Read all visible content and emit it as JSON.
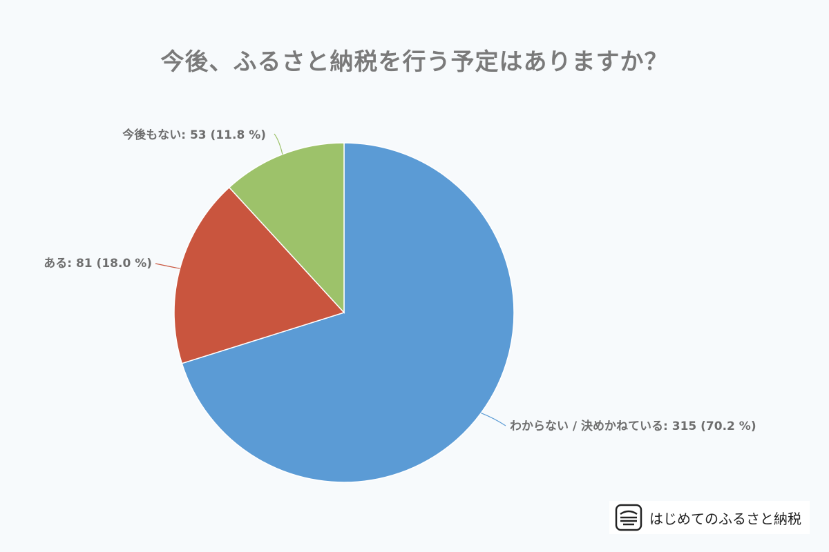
{
  "chart_data": {
    "type": "pie",
    "title": "今後、ふるさと納税を行う予定はありますか？",
    "slices": [
      {
        "label": "わからない / 決めかねている",
        "value": 315,
        "percent": 70.2,
        "color": "#5b9bd5",
        "label_text": "わからない / 決めかねている: 315 (70.2 %)"
      },
      {
        "label": "ある",
        "value": 81,
        "percent": 18.0,
        "color": "#c9553e",
        "label_text": "ある: 81 (18.0 %)"
      },
      {
        "label": "今後もない",
        "value": 53,
        "percent": 11.8,
        "color": "#9dc26a",
        "label_text": "今後もない: 53 (11.8 %)"
      }
    ]
  },
  "branding": {
    "logo_text": "はじめてのふるさと納税",
    "logo_icon": "furusato-logo-icon"
  }
}
